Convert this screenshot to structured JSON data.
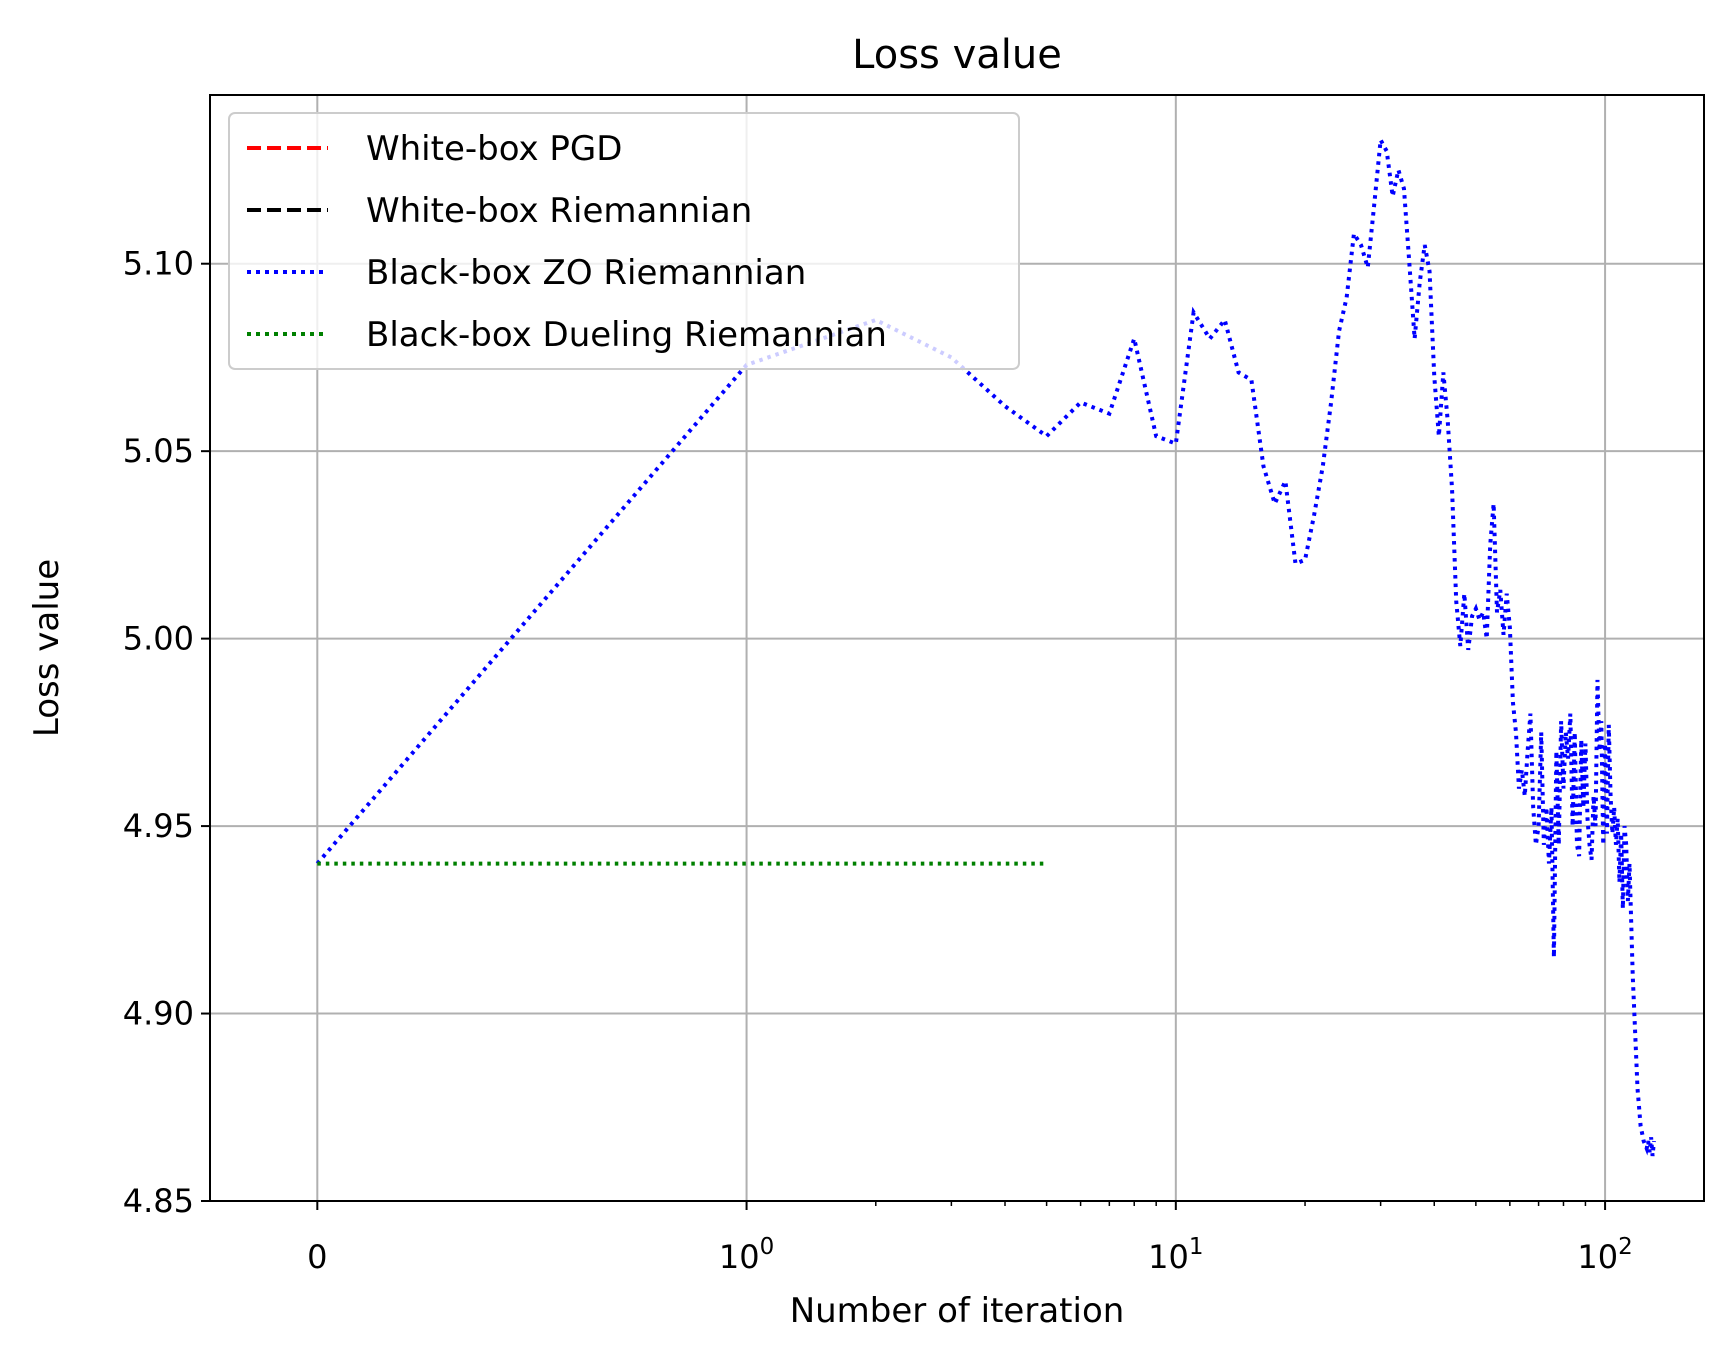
{
  "chart_data": {
    "type": "line",
    "title": "Loss value",
    "xlabel": "Number of iteration",
    "ylabel": "Loss value",
    "xscale": "symlog",
    "xlim": [
      -0.25,
      170
    ],
    "ylim": [
      4.85,
      5.145
    ],
    "xticks": [
      {
        "value": 0,
        "base": "0",
        "exp": ""
      },
      {
        "value": 1,
        "base": "10",
        "exp": "0"
      },
      {
        "value": 10,
        "base": "10",
        "exp": "1"
      },
      {
        "value": 100,
        "base": "10",
        "exp": "2"
      }
    ],
    "yticks": [
      {
        "value": 4.85,
        "label": "4.85"
      },
      {
        "value": 4.9,
        "label": "4.90"
      },
      {
        "value": 4.95,
        "label": "4.95"
      },
      {
        "value": 5.0,
        "label": "5.00"
      },
      {
        "value": 5.05,
        "label": "5.05"
      },
      {
        "value": 5.1,
        "label": "5.10"
      }
    ],
    "grid": true,
    "legend_position": "top-left",
    "series": [
      {
        "name": "White-box PGD",
        "color": "#ff0000",
        "style": "dashed",
        "x": [],
        "y": []
      },
      {
        "name": "White-box Riemannian",
        "color": "#000000",
        "style": "dashed",
        "x": [],
        "y": []
      },
      {
        "name": "Black-box ZO Riemannian",
        "color": "#0000ff",
        "style": "dotted",
        "x": [
          0,
          1,
          2,
          3,
          4,
          5,
          6,
          7,
          8,
          9,
          10,
          11,
          12,
          13,
          14,
          15,
          16,
          17,
          18,
          19,
          20,
          21,
          22,
          23,
          24,
          25,
          26,
          27,
          28,
          29,
          30,
          31,
          32,
          33,
          34,
          35,
          36,
          37,
          38,
          39,
          40,
          41,
          42,
          43,
          44,
          45,
          46,
          47,
          48,
          49,
          50,
          51,
          52,
          53,
          54,
          55,
          56,
          57,
          58,
          59,
          60,
          61,
          62,
          63,
          64,
          65,
          66,
          67,
          68,
          69,
          70,
          71,
          72,
          73,
          74,
          75,
          76,
          77,
          78,
          79,
          80,
          81,
          82,
          83,
          84,
          85,
          86,
          87,
          88,
          89,
          90,
          91,
          92,
          93,
          94,
          95,
          96,
          97,
          98,
          99,
          100,
          101,
          102,
          103,
          104,
          105,
          106,
          107,
          108,
          109,
          110,
          111,
          112,
          113,
          114,
          115,
          116,
          117,
          118,
          119,
          120,
          121,
          122,
          123,
          124,
          125,
          126,
          127,
          128,
          129,
          130
        ],
        "y": [
          4.94,
          5.073,
          5.085,
          5.075,
          5.062,
          5.054,
          5.063,
          5.06,
          5.08,
          5.054,
          5.052,
          5.087,
          5.08,
          5.085,
          5.071,
          5.069,
          5.046,
          5.036,
          5.042,
          5.02,
          5.021,
          5.033,
          5.046,
          5.063,
          5.082,
          5.091,
          5.108,
          5.105,
          5.099,
          5.116,
          5.133,
          5.13,
          5.118,
          5.125,
          5.12,
          5.1,
          5.08,
          5.095,
          5.105,
          5.098,
          5.07,
          5.054,
          5.071,
          5.058,
          5.04,
          5.01,
          4.998,
          5.012,
          4.997,
          5.006,
          5.008,
          5.005,
          5.007,
          5.0,
          5.025,
          5.036,
          5.007,
          5.013,
          5.001,
          5.012,
          5.003,
          4.983,
          4.975,
          4.96,
          4.965,
          4.958,
          4.97,
          4.98,
          4.955,
          4.945,
          4.95,
          4.975,
          4.945,
          4.955,
          4.94,
          4.955,
          4.915,
          4.97,
          4.945,
          4.978,
          4.96,
          4.975,
          4.968,
          4.98,
          4.95,
          4.975,
          4.945,
          4.942,
          4.973,
          4.955,
          4.972,
          4.952,
          4.945,
          4.941,
          4.958,
          4.95,
          4.989,
          4.97,
          4.978,
          4.945,
          4.972,
          4.948,
          4.977,
          4.958,
          4.948,
          4.955,
          4.945,
          4.952,
          4.935,
          4.948,
          4.928,
          4.95,
          4.945,
          4.93,
          4.94,
          4.925,
          4.91,
          4.9,
          4.89,
          4.88,
          4.875,
          4.87,
          4.868,
          4.866,
          4.865,
          4.864,
          4.866,
          4.863,
          4.867,
          4.862,
          4.866
        ]
      },
      {
        "name": "Black-box Dueling Riemannian",
        "color": "#008000",
        "style": "dotted",
        "x": [
          0,
          1,
          2,
          3,
          4,
          5
        ],
        "y": [
          4.94,
          4.94,
          4.94,
          4.94,
          4.94,
          4.94
        ]
      }
    ]
  }
}
